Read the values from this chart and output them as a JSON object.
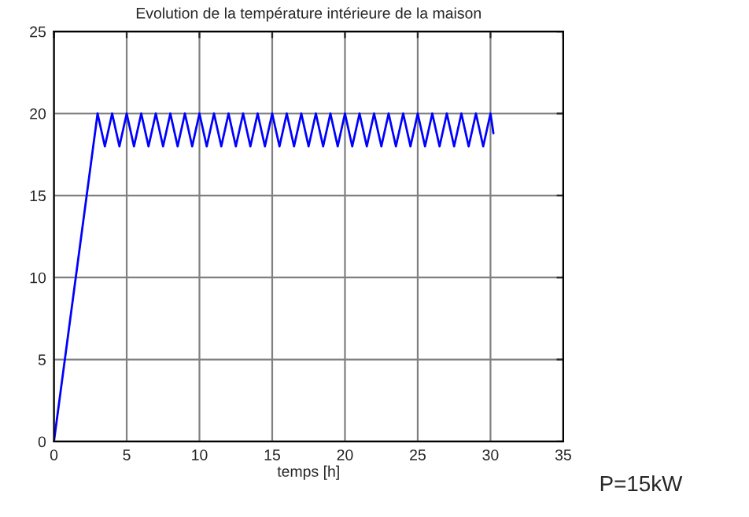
{
  "chart_data": {
    "type": "line",
    "title": "Evolution de la température intérieure de la maison",
    "xlabel": "temps [h]",
    "annotations": [
      "P=15kW"
    ],
    "series": [
      {
        "color": "#0000ff",
        "x": [
          0,
          3,
          3.5,
          4,
          4.5,
          5,
          5.5,
          6,
          6.5,
          7,
          7.5,
          8,
          8.5,
          9,
          9.5,
          10,
          10.5,
          11,
          11.5,
          12,
          12.5,
          13,
          13.5,
          14,
          14.5,
          15,
          15.5,
          16,
          16.5,
          17,
          17.5,
          18,
          18.5,
          19,
          19.5,
          20,
          20.5,
          21,
          21.5,
          22,
          22.5,
          23,
          23.5,
          24,
          24.5,
          25,
          25.5,
          26,
          26.5,
          27,
          27.5,
          28,
          28.5,
          29,
          29.5,
          30,
          30.2
        ],
        "values": [
          0,
          20,
          18,
          20,
          18,
          20,
          18,
          20,
          18,
          20,
          18,
          20,
          18,
          20,
          18,
          20,
          18,
          20,
          18,
          20,
          18,
          20,
          18,
          20,
          18,
          20,
          18,
          20,
          18,
          20,
          18,
          20,
          18,
          20,
          18,
          20,
          18,
          20,
          18,
          20,
          18,
          20,
          18,
          20,
          18,
          20,
          18,
          20,
          18,
          20,
          18,
          20,
          18,
          20,
          18,
          20,
          18.8
        ]
      }
    ],
    "xlim": [
      0,
      35
    ],
    "xticks": [
      0,
      5,
      10,
      15,
      20,
      25,
      30,
      35
    ],
    "ylim": [
      0,
      25
    ],
    "yticks": [
      0,
      5,
      10,
      15,
      20,
      25
    ],
    "grid": true,
    "marker": "none",
    "line_style": "solid"
  }
}
